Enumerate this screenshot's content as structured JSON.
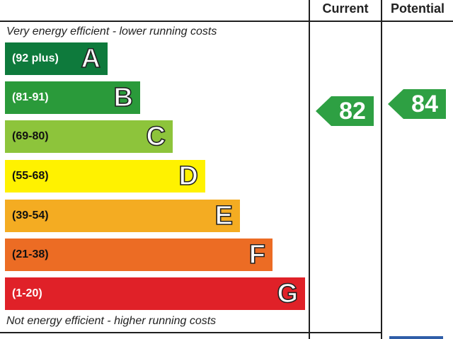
{
  "chart_data": {
    "type": "bar",
    "header": {
      "current_label": "Current",
      "potential_label": "Potential"
    },
    "top_note": "Very energy efficient - lower running costs",
    "bottom_note": "Not energy efficient - higher running costs",
    "bands": [
      {
        "range": "(92 plus)",
        "letter": "A",
        "color": "#0e7a3c"
      },
      {
        "range": "(81-91)",
        "letter": "B",
        "color": "#2a9a3a"
      },
      {
        "range": "(69-80)",
        "letter": "C",
        "color": "#8dc43b"
      },
      {
        "range": "(55-68)",
        "letter": "D",
        "color": "#fff200"
      },
      {
        "range": "(39-54)",
        "letter": "E",
        "color": "#f4ac22"
      },
      {
        "range": "(21-38)",
        "letter": "F",
        "color": "#ec6c24"
      },
      {
        "range": "(1-20)",
        "letter": "G",
        "color": "#e02128"
      }
    ],
    "ratings": {
      "current": {
        "value": 82,
        "color": "#2ea043"
      },
      "potential": {
        "value": 84,
        "color": "#2ea043"
      }
    }
  }
}
